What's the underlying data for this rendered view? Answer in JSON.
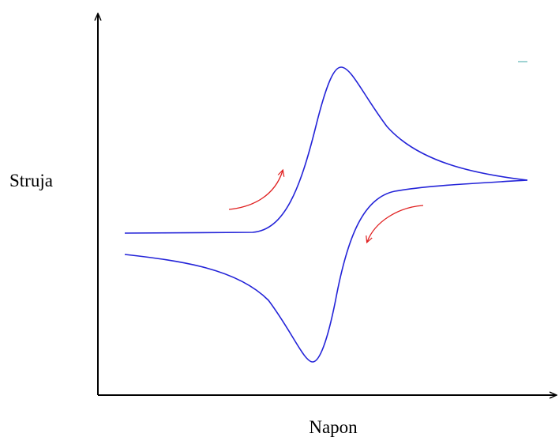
{
  "axes": {
    "y_label": "Struja",
    "x_label": "Napon"
  }
}
